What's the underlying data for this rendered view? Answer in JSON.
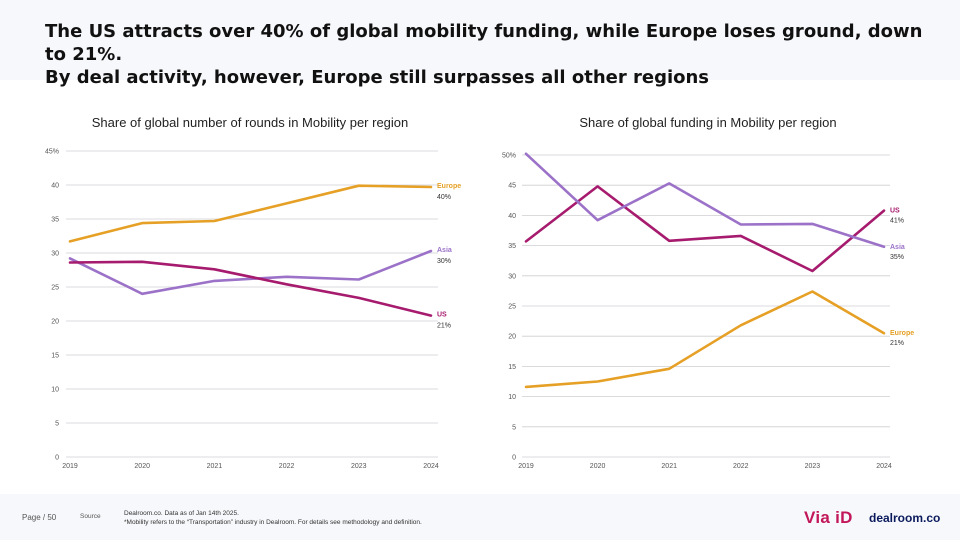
{
  "headline": {
    "line1": "The US attracts over 40% of global mobility funding, while Europe loses ground, down to 21%.",
    "line2": "By deal activity, however, Europe still surpasses all other regions"
  },
  "colors": {
    "europe": "#E5A025",
    "asia": "#9B72C8",
    "us": "#A61B6E",
    "grid": "#cfcfd4"
  },
  "chart_data": [
    {
      "type": "line",
      "title": "Share of global number of rounds in Mobility per region",
      "x": [
        "2019",
        "2020",
        "2021",
        "2022",
        "2023",
        "2024"
      ],
      "ylim": [
        0,
        45
      ],
      "yticks": [
        "0",
        "5",
        "10",
        "15",
        "20",
        "25",
        "30",
        "35",
        "40",
        "45%"
      ],
      "grid": true,
      "series": [
        {
          "name": "Europe",
          "key": "europe",
          "values": [
            31.7,
            34.4,
            34.7,
            37.3,
            39.9,
            39.7
          ],
          "end_label": "40%"
        },
        {
          "name": "Asia",
          "key": "asia",
          "values": [
            29.2,
            24.0,
            25.9,
            26.5,
            26.1,
            30.3
          ],
          "end_label": "30%"
        },
        {
          "name": "US",
          "key": "us",
          "values": [
            28.6,
            28.7,
            27.6,
            25.4,
            23.4,
            20.8
          ],
          "end_label": "21%"
        }
      ]
    },
    {
      "type": "line",
      "title": "Share of global funding in Mobility per region",
      "x": [
        "2019",
        "2020",
        "2021",
        "2022",
        "2023",
        "2024"
      ],
      "ylim": [
        0,
        50
      ],
      "yticks": [
        "0",
        "5",
        "10",
        "15",
        "20",
        "25",
        "30",
        "35",
        "40",
        "45",
        "50%"
      ],
      "grid": true,
      "series": [
        {
          "name": "US",
          "key": "us",
          "values": [
            35.7,
            44.8,
            35.8,
            36.6,
            30.8,
            40.8
          ],
          "end_label": "41%"
        },
        {
          "name": "Asia",
          "key": "asia",
          "values": [
            50.2,
            39.2,
            45.3,
            38.5,
            38.6,
            34.8
          ],
          "end_label": "35%"
        },
        {
          "name": "Europe",
          "key": "europe",
          "values": [
            11.6,
            12.5,
            14.6,
            21.8,
            27.4,
            20.5
          ],
          "end_label": "21%"
        }
      ]
    }
  ],
  "footer": {
    "page": "Page / 50",
    "source_key": "Source",
    "source_line1": "Dealroom.co.   Data as of Jan 14th 2025.",
    "source_line2": "*Mobility refers to the “Transportation” industry in Dealroom. For details see methodology and definition.",
    "logo_via": "Via iD",
    "logo_dealroom": "dealroom.co"
  }
}
